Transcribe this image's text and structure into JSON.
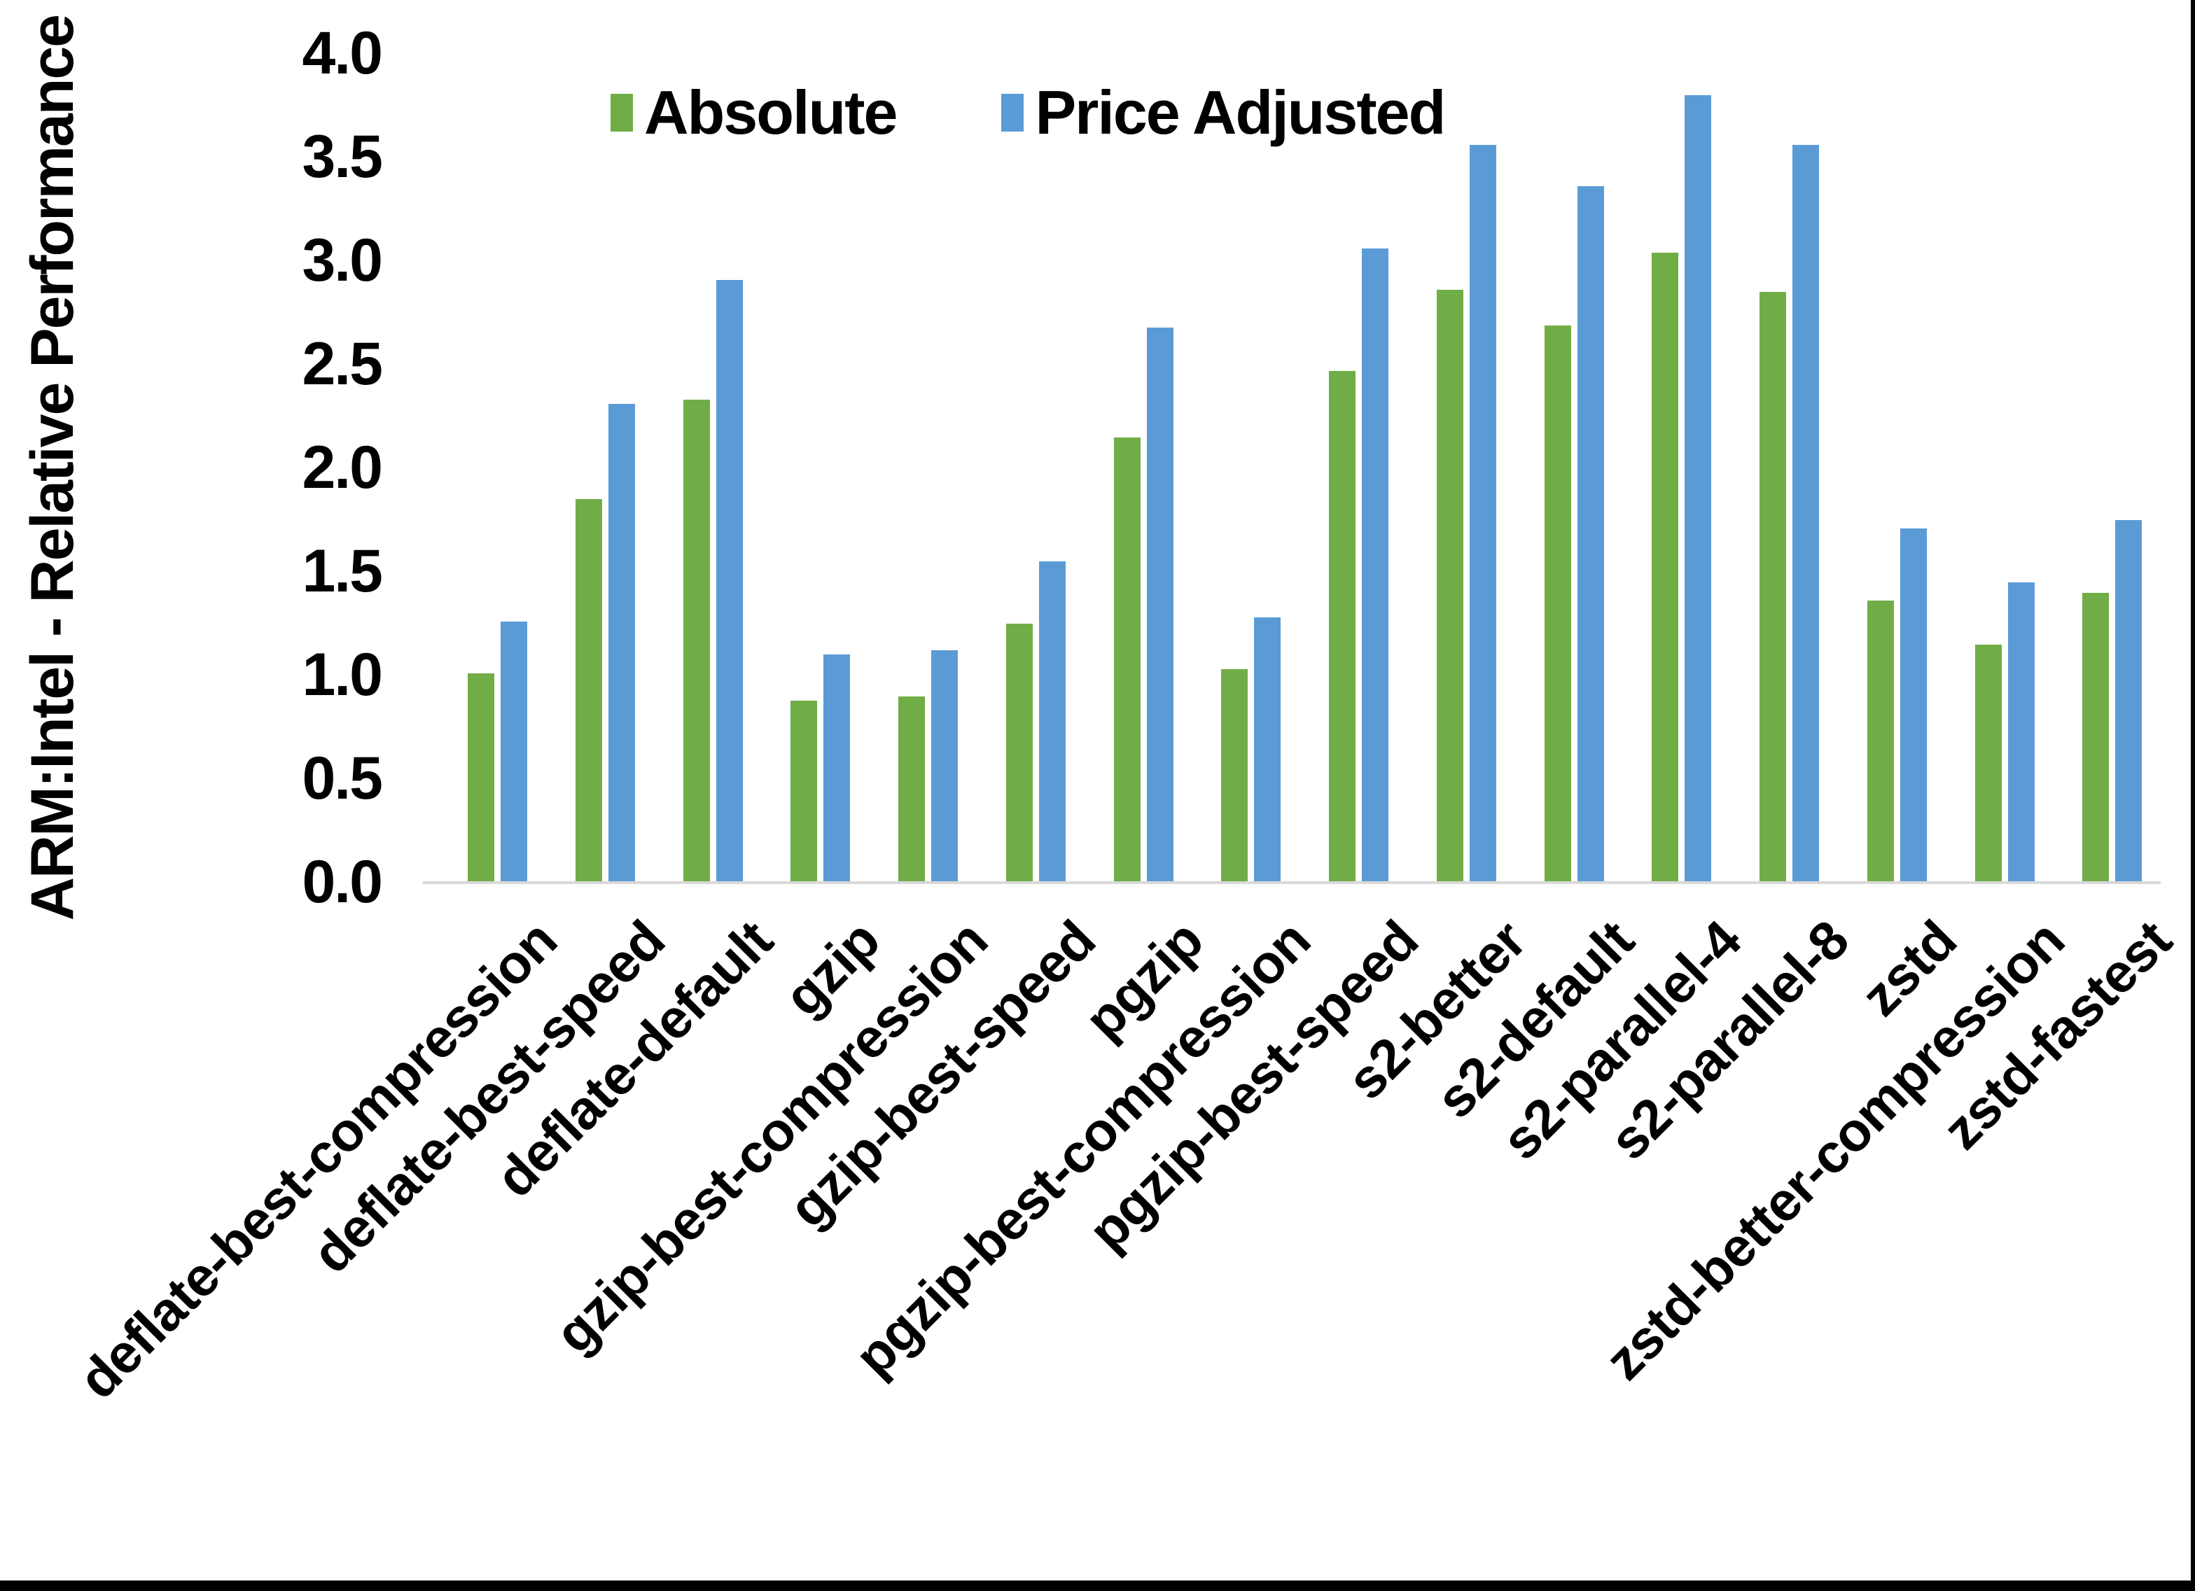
{
  "chart_data": {
    "type": "bar",
    "title": "",
    "ylabel": "ARM:Intel - Relative Performance",
    "xlabel": "",
    "ylim": [
      0.0,
      4.0
    ],
    "y_ticks": [
      "0.0",
      "0.5",
      "1.0",
      "1.5",
      "2.0",
      "2.5",
      "3.0",
      "3.5",
      "4.0"
    ],
    "grid": false,
    "legend_position": "top-center",
    "categories": [
      "deflate-best-compression",
      "deflate-best-speed",
      "deflate-default",
      "gzip",
      "gzip-best-compression",
      "gzip-best-speed",
      "pgzip",
      "pgzip-best-compression",
      "pgzip-best-speed",
      "s2-better",
      "s2-default",
      "s2-parallel-4",
      "s2-parallel-8",
      "zstd",
      "zstd-better-compression",
      "zstd-fastest"
    ],
    "series": [
      {
        "name": "Absolute",
        "color": "#70AD47",
        "values": [
          1.01,
          1.85,
          2.33,
          0.88,
          0.9,
          1.25,
          2.15,
          1.03,
          2.47,
          2.86,
          2.69,
          3.04,
          2.85,
          1.36,
          1.15,
          1.4
        ]
      },
      {
        "name": "Price Adjusted",
        "color": "#5B9BD5",
        "values": [
          1.26,
          2.31,
          2.91,
          1.1,
          1.12,
          1.55,
          2.68,
          1.28,
          3.06,
          3.56,
          3.36,
          3.8,
          3.56,
          1.71,
          1.45,
          1.75
        ]
      }
    ]
  },
  "colors": {
    "background": "#FFFFFF",
    "axis_line": "#D9D9D9",
    "text": "#000000",
    "frame_border": "#000000"
  }
}
